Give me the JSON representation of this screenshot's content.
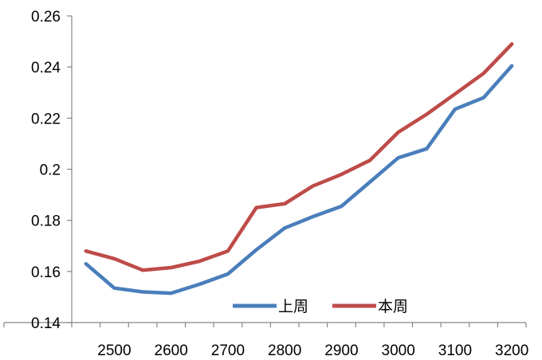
{
  "chart_data": {
    "type": "line",
    "x": [
      2450,
      2500,
      2550,
      2600,
      2650,
      2700,
      2750,
      2800,
      2850,
      2900,
      2950,
      3000,
      3050,
      3100,
      3150,
      3200
    ],
    "series": [
      {
        "name": "上周",
        "color": "#4A7EBB",
        "values": [
          0.163,
          0.1535,
          0.152,
          0.1515,
          0.155,
          0.159,
          0.1685,
          0.177,
          0.1815,
          0.1855,
          0.195,
          0.2045,
          0.208,
          0.2235,
          0.228,
          0.2405
        ]
      },
      {
        "name": "本周",
        "color": "#BE4B48",
        "values": [
          0.168,
          0.165,
          0.1605,
          0.1615,
          0.164,
          0.168,
          0.185,
          0.1865,
          0.1935,
          0.198,
          0.2035,
          0.2145,
          0.2215,
          0.2295,
          0.2375,
          0.249
        ]
      }
    ],
    "ylim": [
      0.14,
      0.26
    ],
    "yticks": [
      "0.14",
      "0.16",
      "0.18",
      "0.2",
      "0.22",
      "0.24",
      "0.26"
    ],
    "xticks": [
      "2500",
      "2600",
      "2700",
      "2800",
      "2900",
      "3000",
      "3100",
      "3200"
    ],
    "legend_position": "bottom-right",
    "grid": false
  }
}
